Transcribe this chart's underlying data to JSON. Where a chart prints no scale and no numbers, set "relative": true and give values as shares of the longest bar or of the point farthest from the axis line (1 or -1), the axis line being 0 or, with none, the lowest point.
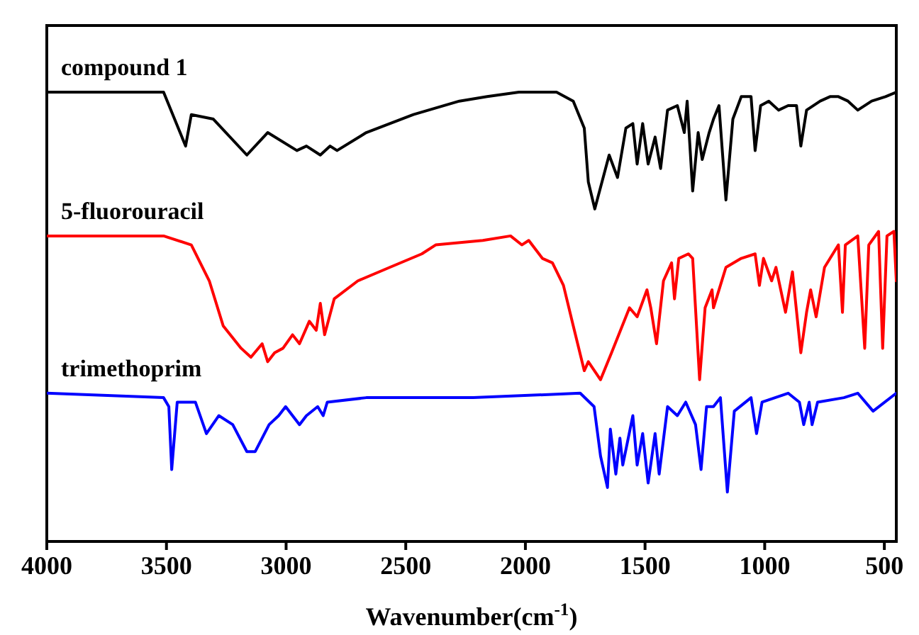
{
  "chart_data": {
    "type": "line",
    "relative": true,
    "xlabel": "Wavenumber(cm$^{-1}$)",
    "xlim": [
      4000,
      450
    ],
    "xticks": [
      4000,
      3500,
      3000,
      2500,
      2000,
      1500,
      1000,
      500
    ],
    "grid": false,
    "line_style": "solid",
    "marker": "none",
    "series": [
      {
        "name": "compound 1",
        "color": "#000000",
        "x": [
          4000,
          3512,
          3420,
          3396,
          3304,
          3164,
          3077,
          2955,
          2915,
          2857,
          2816,
          2787,
          2665,
          2468,
          2276,
          2160,
          2027,
          1870,
          1800,
          1754,
          1737,
          1710,
          1680,
          1650,
          1615,
          1580,
          1551,
          1533,
          1510,
          1487,
          1458,
          1435,
          1406,
          1365,
          1336,
          1324,
          1301,
          1278,
          1261,
          1232,
          1214,
          1191,
          1162,
          1133,
          1098,
          1057,
          1040,
          1017,
          983,
          942,
          902,
          867,
          849,
          825,
          768,
          727,
          692,
          652,
          611,
          553,
          495,
          450
        ],
        "values": [
          1.0,
          1.0,
          0.88,
          0.95,
          0.94,
          0.86,
          0.91,
          0.87,
          0.88,
          0.86,
          0.88,
          0.87,
          0.91,
          0.95,
          0.98,
          0.99,
          1.0,
          1.0,
          0.98,
          0.92,
          0.8,
          0.74,
          0.8,
          0.86,
          0.81,
          0.92,
          0.93,
          0.84,
          0.93,
          0.84,
          0.9,
          0.83,
          0.96,
          0.97,
          0.91,
          0.98,
          0.78,
          0.91,
          0.85,
          0.91,
          0.94,
          0.97,
          0.76,
          0.94,
          0.99,
          0.99,
          0.87,
          0.97,
          0.98,
          0.96,
          0.97,
          0.97,
          0.88,
          0.96,
          0.98,
          0.99,
          0.99,
          0.98,
          0.96,
          0.98,
          0.99,
          1.0
        ]
      },
      {
        "name": "5-fluorouracil",
        "color": "#ff0000",
        "x": [
          4000,
          3512,
          3396,
          3321,
          3263,
          3188,
          3147,
          3100,
          3077,
          3048,
          3013,
          2973,
          2944,
          2903,
          2874,
          2857,
          2839,
          2799,
          2700,
          2567,
          2433,
          2375,
          2178,
          2062,
          2015,
          1986,
          1929,
          1887,
          1841,
          1800,
          1754,
          1737,
          1686,
          1640,
          1565,
          1533,
          1492,
          1476,
          1452,
          1423,
          1389,
          1377,
          1359,
          1319,
          1301,
          1272,
          1249,
          1220,
          1214,
          1162,
          1098,
          1040,
          1022,
          1005,
          971,
          953,
          913,
          884,
          849,
          825,
          808,
          785,
          750,
          692,
          675,
          663,
          611,
          582,
          565,
          524,
          507,
          489,
          460,
          450
        ],
        "values": [
          0.68,
          0.68,
          0.66,
          0.58,
          0.48,
          0.43,
          0.41,
          0.44,
          0.4,
          0.42,
          0.43,
          0.46,
          0.44,
          0.49,
          0.47,
          0.53,
          0.46,
          0.54,
          0.58,
          0.61,
          0.64,
          0.66,
          0.67,
          0.68,
          0.66,
          0.67,
          0.63,
          0.62,
          0.57,
          0.48,
          0.38,
          0.4,
          0.36,
          0.42,
          0.52,
          0.5,
          0.56,
          0.52,
          0.44,
          0.58,
          0.62,
          0.54,
          0.63,
          0.64,
          0.63,
          0.36,
          0.52,
          0.56,
          0.52,
          0.61,
          0.63,
          0.64,
          0.57,
          0.63,
          0.58,
          0.61,
          0.51,
          0.6,
          0.42,
          0.51,
          0.56,
          0.5,
          0.61,
          0.66,
          0.51,
          0.66,
          0.68,
          0.43,
          0.66,
          0.69,
          0.43,
          0.68,
          0.69,
          0.58
        ]
      },
      {
        "name": "trimethoprim",
        "color": "#0000ff",
        "x": [
          4000,
          3512,
          3490,
          3478,
          3455,
          3379,
          3333,
          3281,
          3223,
          3164,
          3129,
          3071,
          3031,
          3002,
          2944,
          2915,
          2868,
          2845,
          2828,
          2665,
          2218,
          1771,
          1713,
          1686,
          1657,
          1645,
          1622,
          1605,
          1593,
          1551,
          1533,
          1510,
          1487,
          1458,
          1441,
          1406,
          1365,
          1330,
          1289,
          1266,
          1243,
          1214,
          1185,
          1156,
          1127,
          1057,
          1034,
          1011,
          902,
          855,
          837,
          814,
          802,
          779,
          669,
          611,
          547,
          450
        ],
        "values": [
          0.33,
          0.32,
          0.3,
          0.16,
          0.31,
          0.31,
          0.24,
          0.28,
          0.26,
          0.2,
          0.2,
          0.26,
          0.28,
          0.3,
          0.26,
          0.28,
          0.3,
          0.28,
          0.31,
          0.32,
          0.32,
          0.33,
          0.3,
          0.19,
          0.12,
          0.25,
          0.15,
          0.23,
          0.17,
          0.28,
          0.17,
          0.24,
          0.13,
          0.24,
          0.15,
          0.3,
          0.28,
          0.31,
          0.26,
          0.16,
          0.3,
          0.3,
          0.32,
          0.11,
          0.29,
          0.32,
          0.24,
          0.31,
          0.33,
          0.31,
          0.26,
          0.31,
          0.26,
          0.31,
          0.32,
          0.33,
          0.29,
          0.33
        ]
      }
    ]
  }
}
